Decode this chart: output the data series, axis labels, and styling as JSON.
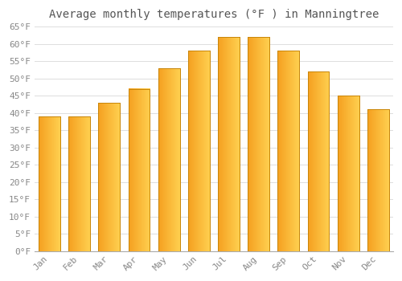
{
  "title": "Average monthly temperatures (°F ) in Manningtree",
  "months": [
    "Jan",
    "Feb",
    "Mar",
    "Apr",
    "May",
    "Jun",
    "Jul",
    "Aug",
    "Sep",
    "Oct",
    "Nov",
    "Dec"
  ],
  "values": [
    39,
    39,
    43,
    47,
    53,
    58,
    62,
    62,
    58,
    52,
    45,
    41
  ],
  "bar_color_left": "#F5A623",
  "bar_color_right": "#FFC84A",
  "bar_edge_color": "#C8860A",
  "ylim": [
    0,
    65
  ],
  "ytick_step": 5,
  "background_color": "#FFFFFF",
  "grid_color": "#DDDDDD",
  "title_fontsize": 10,
  "tick_fontsize": 8,
  "tick_color": "#888888"
}
